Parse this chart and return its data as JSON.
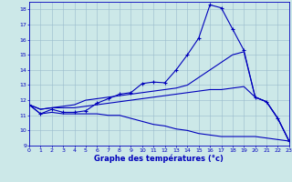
{
  "title": "Graphe des températures (°c)",
  "bg": "#cce8e8",
  "grid_color": "#99bbcc",
  "lc": "#0000bb",
  "xlim": [
    0,
    23
  ],
  "ylim": [
    9,
    18.5
  ],
  "ytick_vals": [
    9,
    10,
    11,
    12,
    13,
    14,
    15,
    16,
    17,
    18
  ],
  "xtick_vals": [
    0,
    1,
    2,
    3,
    4,
    5,
    6,
    7,
    8,
    9,
    10,
    11,
    12,
    13,
    14,
    15,
    16,
    17,
    18,
    19,
    20,
    21,
    22,
    23
  ],
  "temp": [
    11.7,
    11.1,
    11.4,
    11.2,
    11.2,
    11.3,
    11.8,
    12.1,
    12.4,
    12.5,
    13.1,
    13.2,
    13.15,
    14.0,
    15.0,
    16.1,
    18.3,
    18.1,
    16.7,
    15.3,
    12.2,
    11.9,
    10.8,
    9.3
  ],
  "upper": [
    11.7,
    11.4,
    11.5,
    11.6,
    11.7,
    12.0,
    12.1,
    12.2,
    12.3,
    12.4,
    12.5,
    12.6,
    12.7,
    12.8,
    13.0,
    13.5,
    14.0,
    14.5,
    15.0,
    15.2,
    12.2,
    11.9,
    10.8,
    9.3
  ],
  "lower": [
    11.7,
    11.1,
    11.2,
    11.1,
    11.1,
    11.1,
    11.1,
    11.0,
    11.0,
    10.8,
    10.6,
    10.4,
    10.3,
    10.1,
    10.0,
    9.8,
    9.7,
    9.6,
    9.6,
    9.6,
    9.6,
    9.5,
    9.4,
    9.3
  ],
  "middle": [
    11.7,
    11.4,
    11.5,
    11.5,
    11.5,
    11.6,
    11.7,
    11.8,
    11.9,
    12.0,
    12.1,
    12.2,
    12.3,
    12.4,
    12.5,
    12.6,
    12.7,
    12.7,
    12.8,
    12.9,
    12.2,
    11.9,
    10.8,
    9.3
  ]
}
